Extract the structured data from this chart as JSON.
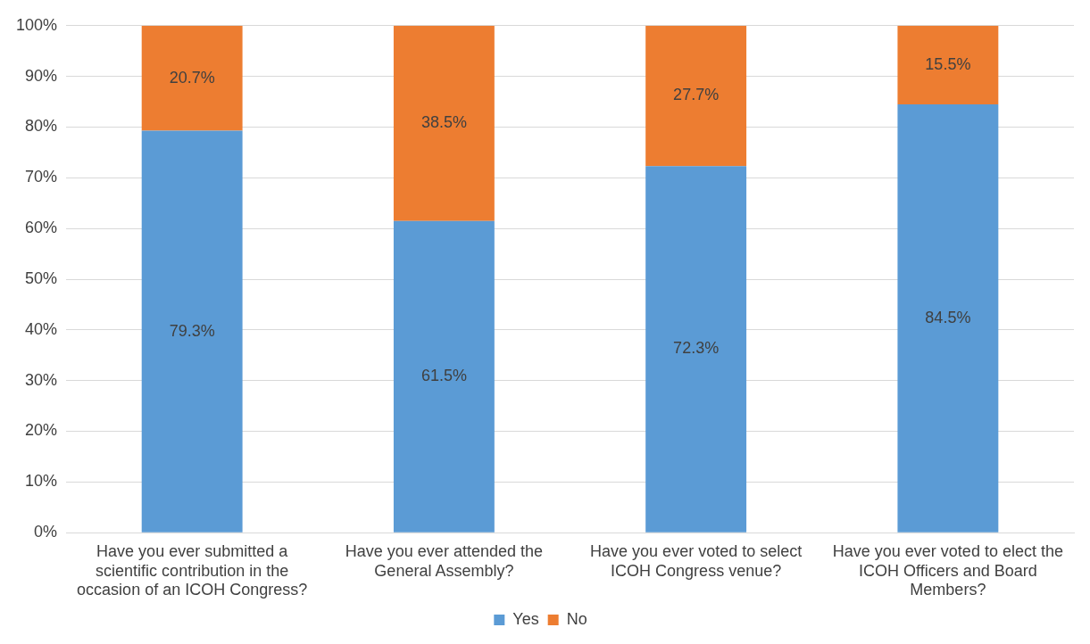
{
  "chart_data": {
    "type": "bar",
    "stacked": true,
    "categories": [
      "Have you ever submitted a scientific contribution in the occasion of an ICOH Congress?",
      "Have you ever attended the General Assembly?",
      "Have you ever voted to select ICOH Congress venue?",
      "Have you ever voted to elect the ICOH Officers and Board Members?"
    ],
    "series": [
      {
        "name": "Yes",
        "color": "#5b9bd5",
        "values": [
          79.3,
          61.5,
          72.3,
          84.5
        ],
        "value_labels": [
          "79.3%",
          "61.5%",
          "72.3%",
          "84.5%"
        ]
      },
      {
        "name": "No",
        "color": "#ed7d31",
        "values": [
          20.7,
          38.5,
          27.7,
          15.5
        ],
        "value_labels": [
          "20.7%",
          "38.5%",
          "27.7%",
          "15.5%"
        ]
      }
    ],
    "ylim": [
      0,
      100
    ],
    "yticks": [
      {
        "value": 0,
        "label": "0%"
      },
      {
        "value": 10,
        "label": "10%"
      },
      {
        "value": 20,
        "label": "20%"
      },
      {
        "value": 30,
        "label": "30%"
      },
      {
        "value": 40,
        "label": "40%"
      },
      {
        "value": 50,
        "label": "50%"
      },
      {
        "value": 60,
        "label": "60%"
      },
      {
        "value": 70,
        "label": "70%"
      },
      {
        "value": 80,
        "label": "80%"
      },
      {
        "value": 90,
        "label": "90%"
      },
      {
        "value": 100,
        "label": "100%"
      }
    ],
    "grid": "y",
    "legend": "bottom"
  }
}
